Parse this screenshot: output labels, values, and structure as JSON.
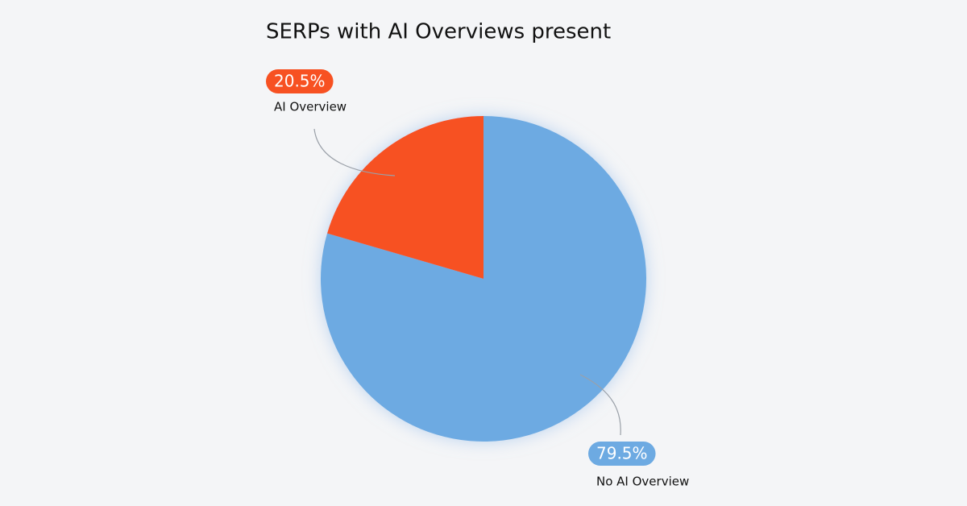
{
  "chart_data": {
    "type": "pie",
    "title": "SERPs with AI Overviews present",
    "categories": [
      "No AI Overview",
      "AI Overview"
    ],
    "values": [
      79.5,
      20.5
    ],
    "value_labels": [
      "79.5%",
      "20.5%"
    ],
    "colors": [
      "#6daae2",
      "#f75122"
    ]
  }
}
